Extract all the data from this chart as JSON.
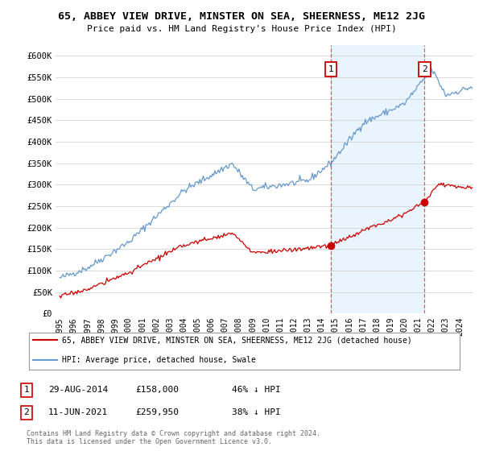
{
  "title": "65, ABBEY VIEW DRIVE, MINSTER ON SEA, SHEERNESS, ME12 2JG",
  "subtitle": "Price paid vs. HM Land Registry's House Price Index (HPI)",
  "ylim": [
    0,
    625000
  ],
  "yticks": [
    0,
    50000,
    100000,
    150000,
    200000,
    250000,
    300000,
    350000,
    400000,
    450000,
    500000,
    550000,
    600000
  ],
  "ytick_labels": [
    "£0",
    "£50K",
    "£100K",
    "£150K",
    "£200K",
    "£250K",
    "£300K",
    "£350K",
    "£400K",
    "£450K",
    "£500K",
    "£550K",
    "£600K"
  ],
  "hpi_color": "#6699cc",
  "price_color": "#cc0000",
  "shade_color": "#ddeeff",
  "sale1_date": "29-AUG-2014",
  "sale1_price": "£158,000",
  "sale1_label": "46% ↓ HPI",
  "sale2_date": "11-JUN-2021",
  "sale2_price": "£259,950",
  "sale2_label": "38% ↓ HPI",
  "footer": "Contains HM Land Registry data © Crown copyright and database right 2024.\nThis data is licensed under the Open Government Licence v3.0.",
  "legend_line1": "65, ABBEY VIEW DRIVE, MINSTER ON SEA, SHEERNESS, ME12 2JG (detached house)",
  "legend_line2": "HPI: Average price, detached house, Swale"
}
